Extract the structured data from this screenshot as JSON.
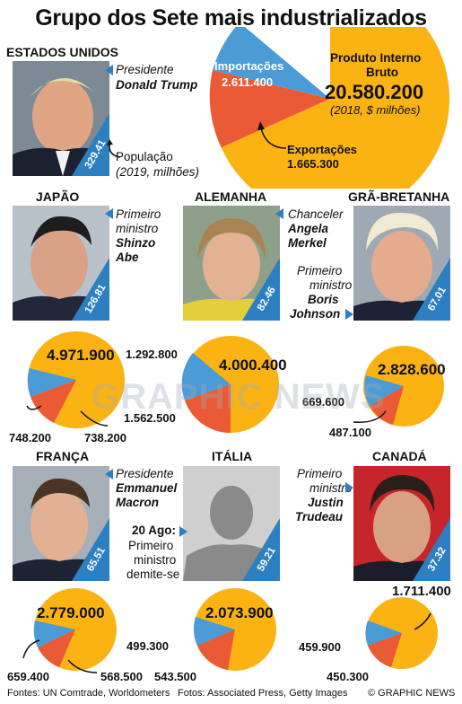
{
  "title": "Grupo dos Sete mais industrializados",
  "colors": {
    "gdp": "#fbb314",
    "imports": "#4b9bd6",
    "exports": "#ea5a37",
    "accent": "#2c7fc0"
  },
  "usa": {
    "country": "ESTADOS UNIDOS",
    "role": "Presidente",
    "leader": "Donald Trump",
    "population": "329.41",
    "population_label": "População",
    "population_note": "(2019, milhões)",
    "gdp_label_1": "Produto Interno",
    "gdp_label_2": "Bruto",
    "gdp_value": "20.580.200",
    "gdp_note": "(2018, $ milhões)",
    "imports_label": "Importações",
    "imports_value": "2.611.400",
    "exports_label": "Exportações",
    "exports_value": "1.665.300"
  },
  "japan": {
    "country": "JAPÃO",
    "role_1": "Primeiro",
    "role_2": "ministro",
    "leader_1": "Shinzo",
    "leader_2": "Abe",
    "population": "126.81",
    "gdp": "4.971.900",
    "imports": "748.200",
    "exports": "738.200"
  },
  "germany": {
    "country": "ALEMANHA",
    "role": "Chanceler",
    "leader_1": "Angela",
    "leader_2": "Merkel",
    "population": "82.46",
    "gdp": "4.000.400",
    "imports": "1.292.800",
    "exports": "1.562.500"
  },
  "britain": {
    "country": "GRÃ-BRETANHA",
    "role_1": "Primeiro",
    "role_2": "ministro",
    "leader_1": "Boris",
    "leader_2": "Johnson",
    "population": "67.01",
    "gdp": "2.828.600",
    "imports": "669.600",
    "exports": "487.100"
  },
  "france": {
    "country": "FRANÇA",
    "role": "Presidente",
    "leader": "Emmanuel Macron",
    "population": "65.51",
    "gdp": "2.779.000",
    "imports": "659.400",
    "exports": "568.500"
  },
  "italy": {
    "country": "ITÁLIA",
    "note_1": "20 Ago:",
    "note_2": "Primeiro",
    "note_3": "ministro",
    "note_4": "demite-se",
    "population": "59.21",
    "gdp": "2.073.900",
    "imports": "499.300",
    "exports": "543.500"
  },
  "canada": {
    "country": "CANADÁ",
    "role_1": "Primeiro",
    "role_2": "ministro",
    "leader_1": "Justin",
    "leader_2": "Trudeau",
    "population": "37.32",
    "gdp": "1.711.400",
    "imports": "459.900",
    "exports": "450.300"
  },
  "watermark": "GRAPHIC NEWS",
  "footer": {
    "sources": "Fontes: UN Comtrade, Worldometers",
    "photos": "Fotos: Associated Press, Getty Images",
    "credit": "© GRAPHIC NEWS"
  }
}
